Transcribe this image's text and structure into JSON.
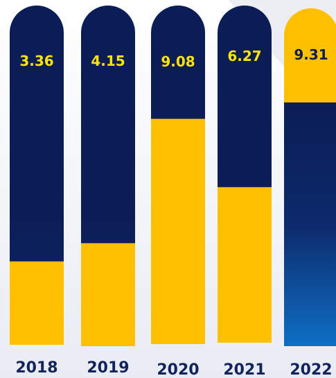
{
  "chart_data": {
    "type": "bar",
    "title": "",
    "xlabel": "",
    "ylabel": "",
    "categories": [
      "2018",
      "2019",
      "2020",
      "2021",
      "2022"
    ],
    "values": [
      3.36,
      4.15,
      9.08,
      6.27,
      9.31
    ],
    "ylim": [
      0,
      12
    ],
    "grid": false,
    "legend": "none"
  },
  "colors": {
    "background_top": "#ffffff",
    "background_bottom": "#e9ecf3",
    "bar_dark": "#0b1d56",
    "bar_dark_bottom": "#0d2a6b",
    "bar_blue_light": "#0e6fc4",
    "bar_yellow": "#ffc000",
    "value_text": "#ffe500",
    "year_text": "#13245c"
  }
}
